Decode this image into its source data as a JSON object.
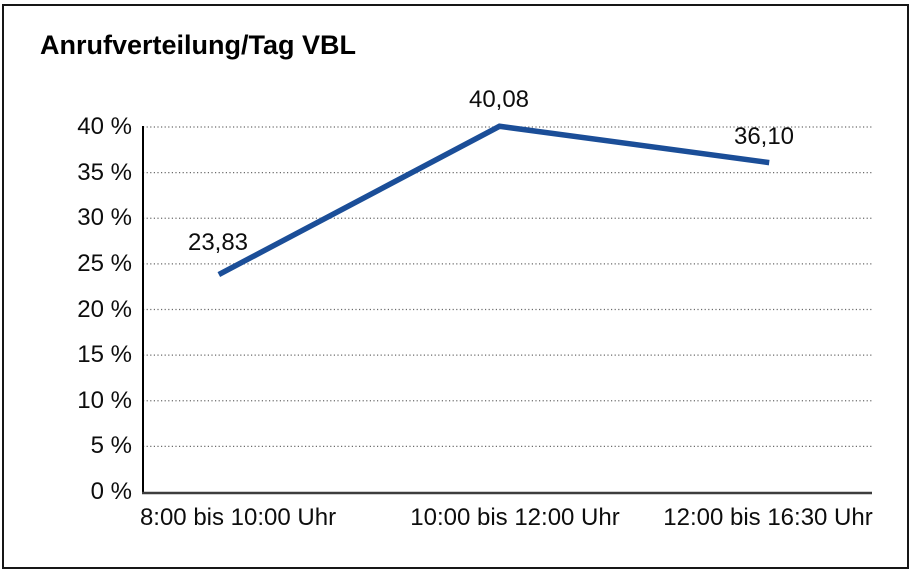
{
  "page": {
    "title": "Anrufverteilung/Tag VBL"
  },
  "chart_data": {
    "type": "line",
    "title": "Anrufverteilung/Tag VBL",
    "categories": [
      "8:00 bis 10:00 Uhr",
      "10:00 bis 12:00 Uhr",
      "12:00 bis 16:30 Uhr"
    ],
    "values": [
      23.83,
      40.08,
      36.1
    ],
    "point_labels": [
      "23,83",
      "40,08",
      "36,10"
    ],
    "xlabel": "",
    "ylabel": "",
    "ylim": [
      0,
      40
    ],
    "ytick_step": 5,
    "ytick_labels": [
      "0 %",
      "5 %",
      "10 %",
      "15 %",
      "20 %",
      "25 %",
      "30 %",
      "35 %",
      "40 %"
    ],
    "grid": "horizontal-dotted",
    "legend": "none",
    "colors": {
      "line": "#1b4e98",
      "gridline": "#6b6b6b",
      "y_axis": "#000000",
      "x_axis": "#3d3d3d",
      "text": "#0d0d0d",
      "background": "#ffffff",
      "border": "#161616"
    }
  }
}
